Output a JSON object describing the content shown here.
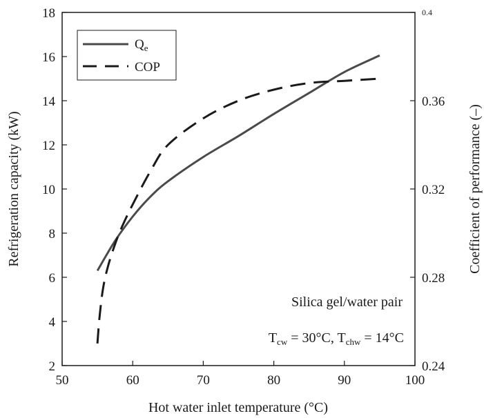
{
  "chart_data": {
    "type": "line",
    "xlabel": "Hot water inlet temperature (°C)",
    "ylabel": "Refrigeration capacity (kW)",
    "y2label": "Coefficient of performance (–)",
    "xlim": [
      50,
      100
    ],
    "ylim": [
      2,
      18
    ],
    "y2lim": [
      0.24,
      0.4
    ],
    "x_ticks": [
      "50",
      "60",
      "70",
      "80",
      "90",
      "100"
    ],
    "y_ticks": [
      "2",
      "4",
      "6",
      "8",
      "10",
      "12",
      "14",
      "16",
      "18"
    ],
    "y2_ticks": [
      "0.24",
      "0.28",
      "0.32",
      "0.36",
      "0.4"
    ],
    "grid": false,
    "legend_position": "top-left",
    "series": [
      {
        "name": "Qe",
        "name_main": "Q",
        "name_sub": "e",
        "axis": "left",
        "style": "solid",
        "color": "#4a4a4a",
        "x": [
          55,
          57.5,
          60,
          62.5,
          65,
          70,
          75,
          80,
          85,
          90,
          95
        ],
        "y": [
          6.3,
          7.65,
          8.75,
          9.65,
          10.35,
          11.45,
          12.4,
          13.4,
          14.35,
          15.3,
          16.05
        ]
      },
      {
        "name": "COP",
        "axis": "right",
        "style": "dashed",
        "color": "#1a1a1a",
        "x": [
          55,
          55.3,
          55.8,
          56.5,
          57.5,
          58.5,
          60,
          62.5,
          65,
          70,
          75,
          80,
          85,
          90,
          95
        ],
        "y": [
          0.25,
          0.262,
          0.275,
          0.285,
          0.295,
          0.303,
          0.313,
          0.328,
          0.34,
          0.352,
          0.36,
          0.365,
          0.368,
          0.369,
          0.37
        ]
      }
    ],
    "annotations": {
      "pair": "Silica gel/water pair",
      "cond_a_main": "T",
      "cond_a_sub": "cw",
      "cond_a_rest": " = 30°C, ",
      "cond_b_main": "T",
      "cond_b_sub": "chw",
      "cond_b_rest": " = 14°C"
    }
  }
}
